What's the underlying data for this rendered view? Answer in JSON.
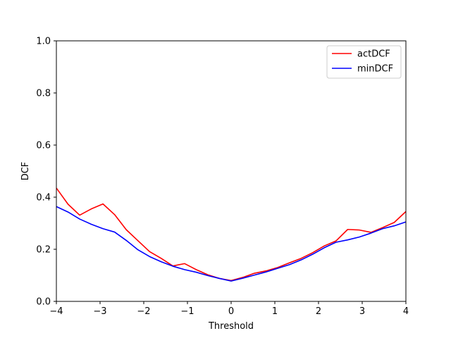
{
  "chart_data": {
    "type": "line",
    "xlabel": "Threshold",
    "ylabel": "DCF",
    "xlim": [
      -4,
      4
    ],
    "ylim": [
      0,
      1
    ],
    "xticks": [
      -4,
      -3,
      -2,
      -1,
      0,
      1,
      2,
      3,
      4
    ],
    "xtick_labels": [
      "−4",
      "−3",
      "−2",
      "−1",
      "0",
      "1",
      "2",
      "3",
      "4"
    ],
    "yticks": [
      0,
      0.2,
      0.4,
      0.6,
      0.8,
      1.0
    ],
    "ytick_labels": [
      "0.0",
      "0.2",
      "0.4",
      "0.6",
      "0.8",
      "1.0"
    ],
    "grid": false,
    "legend_position": "top-right",
    "x": [
      -4.0,
      -3.7333,
      -3.4667,
      -3.2,
      -2.9333,
      -2.6667,
      -2.4,
      -2.1333,
      -1.8667,
      -1.6,
      -1.3333,
      -1.0667,
      -0.8,
      -0.5333,
      -0.2667,
      0.0,
      0.2667,
      0.5333,
      0.8,
      1.0667,
      1.3333,
      1.6,
      1.8667,
      2.1333,
      2.4,
      2.6667,
      2.9333,
      3.2,
      3.4667,
      3.7333,
      4.0
    ],
    "series": [
      {
        "name": "actDCF",
        "color": "#ff0000",
        "values": [
          0.435,
          0.373,
          0.331,
          0.355,
          0.374,
          0.333,
          0.275,
          0.233,
          0.191,
          0.165,
          0.136,
          0.145,
          0.122,
          0.102,
          0.088,
          0.08,
          0.092,
          0.108,
          0.117,
          0.13,
          0.148,
          0.165,
          0.187,
          0.213,
          0.232,
          0.276,
          0.274,
          0.265,
          0.283,
          0.303,
          0.345
        ]
      },
      {
        "name": "minDCF",
        "color": "#0000ff",
        "values": [
          0.364,
          0.343,
          0.316,
          0.296,
          0.279,
          0.266,
          0.234,
          0.198,
          0.172,
          0.152,
          0.135,
          0.122,
          0.112,
          0.099,
          0.088,
          0.078,
          0.089,
          0.101,
          0.113,
          0.127,
          0.141,
          0.159,
          0.181,
          0.206,
          0.227,
          0.236,
          0.247,
          0.262,
          0.279,
          0.29,
          0.305
        ]
      }
    ]
  }
}
